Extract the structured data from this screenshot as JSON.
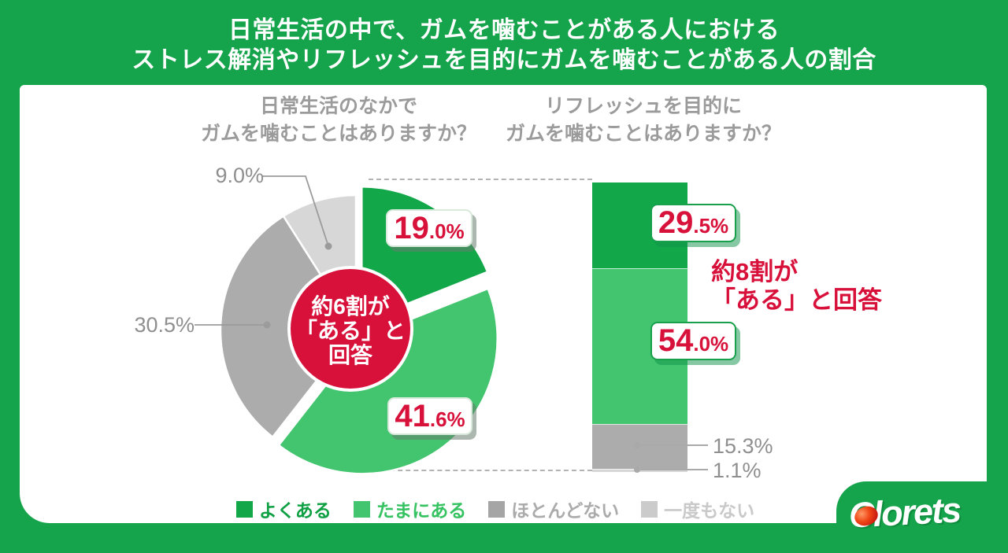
{
  "header": {
    "line1": "日常生活の中で、ガムを噛むことがある人における",
    "line2": "ストレス解消やリフレッシュを目的にガムを噛むことがある人の割合"
  },
  "pie": {
    "title_line1": "日常生活のなかで",
    "title_line2": "ガムを噛むことはありますか？",
    "center_line1": "約6割が",
    "center_line2": "「ある」と",
    "center_line3": "回答"
  },
  "bar": {
    "title_line1": "リフレッシュを目的に",
    "title_line2": "ガムを噛むことはありますか？",
    "annotation_line1": "約8割が",
    "annotation_line2": "「ある」と回答"
  },
  "legend": {
    "items": [
      {
        "label": "よくある",
        "color": "#12A748",
        "text_color": "#0FA044"
      },
      {
        "label": "たまにある",
        "color": "#42C56E",
        "text_color": "#35C261"
      },
      {
        "label": "ほとんどない",
        "color": "#A5A5A5",
        "text_color": "#ABABAB"
      },
      {
        "label": "一度もない",
        "color": "#CBCBCB",
        "text_color": "#C9C9C9"
      }
    ]
  },
  "logo": {
    "text": "Clorets"
  },
  "colors": {
    "brand_green": "#15A44B",
    "red": "#D8113B",
    "title_gray": "#9B9B9B",
    "label_gray": "#8F8F8F"
  },
  "chart_data": [
    {
      "type": "pie",
      "title": "日常生活のなかでガムを噛むことはありますか？",
      "categories": [
        "よくある",
        "たまにある",
        "ほとんどない",
        "一度もない"
      ],
      "values": [
        19.0,
        41.6,
        30.5,
        9.0
      ],
      "colors": [
        "#12A748",
        "#42C56E",
        "#ACACAC",
        "#D7D7D7"
      ],
      "start_angle_deg": 0,
      "direction": "clockwise",
      "exploded_categories": [
        "よくある",
        "たまにある"
      ],
      "annotation": "約6割が「ある」と回答"
    },
    {
      "type": "bar",
      "subtype": "stacked-single-column",
      "title": "リフレッシュを目的にガムを噛むことはありますか？",
      "categories": [
        "よくある",
        "たまにある",
        "ほとんどない",
        "一度もない"
      ],
      "values": [
        29.5,
        54.0,
        15.3,
        1.1
      ],
      "colors": [
        "#12A748",
        "#42C56E",
        "#ACACAC",
        "#D7D7D7"
      ],
      "ylim": [
        0,
        100
      ],
      "annotation": "約8割が「ある」と回答"
    }
  ]
}
